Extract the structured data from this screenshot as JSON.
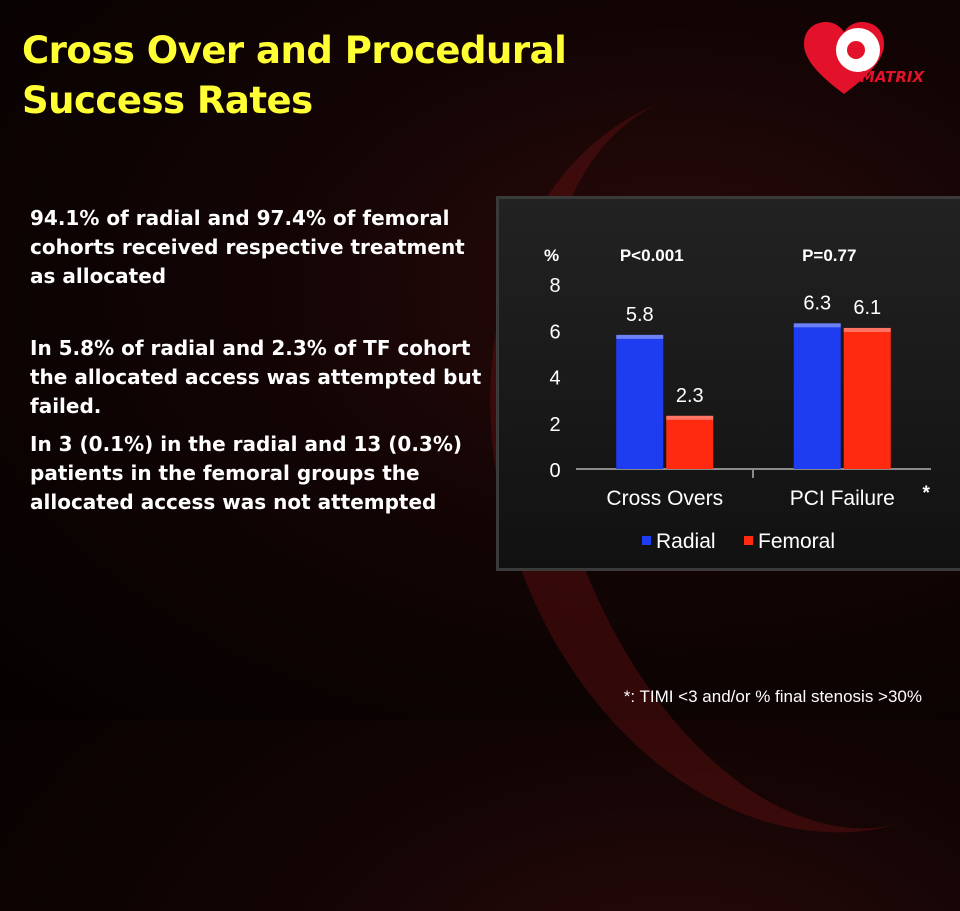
{
  "slide": {
    "title_line1": "Cross Over and Procedural",
    "title_line2": "Success Rates",
    "logo_text": "MATRIX",
    "bullets": [
      "94.1% of radial and 97.4% of femoral cohorts received respective treatment as allocated",
      "In 5.8% of radial and 2.3% of TF cohort the allocated access was attempted but failed.",
      "In 3 (0.1%) in the radial and 13 (0.3%) patients in the femoral groups the allocated access was not attempted"
    ],
    "footnote": "*: TIMI <3 and/or % final stenosis >30%"
  },
  "chart_data": {
    "type": "bar",
    "ylabel": "%",
    "ylim": [
      0,
      8
    ],
    "yticks": [
      "0",
      "2",
      "4",
      "6",
      "8"
    ],
    "categories": [
      "Cross Overs",
      "PCI Failure"
    ],
    "category_annotations": [
      "",
      "*"
    ],
    "pvalues": [
      "P<0.001",
      "P=0.77"
    ],
    "series": [
      {
        "name": "Radial",
        "values": [
          5.8,
          6.3
        ],
        "labels": [
          "5.8",
          "6.3"
        ],
        "color": "#1f3df0"
      },
      {
        "name": "Femoral",
        "values": [
          2.3,
          6.1
        ],
        "labels": [
          "2.3",
          "6.1"
        ],
        "color": "#ff2a10"
      }
    ],
    "grid": false,
    "legend": "bottom"
  }
}
